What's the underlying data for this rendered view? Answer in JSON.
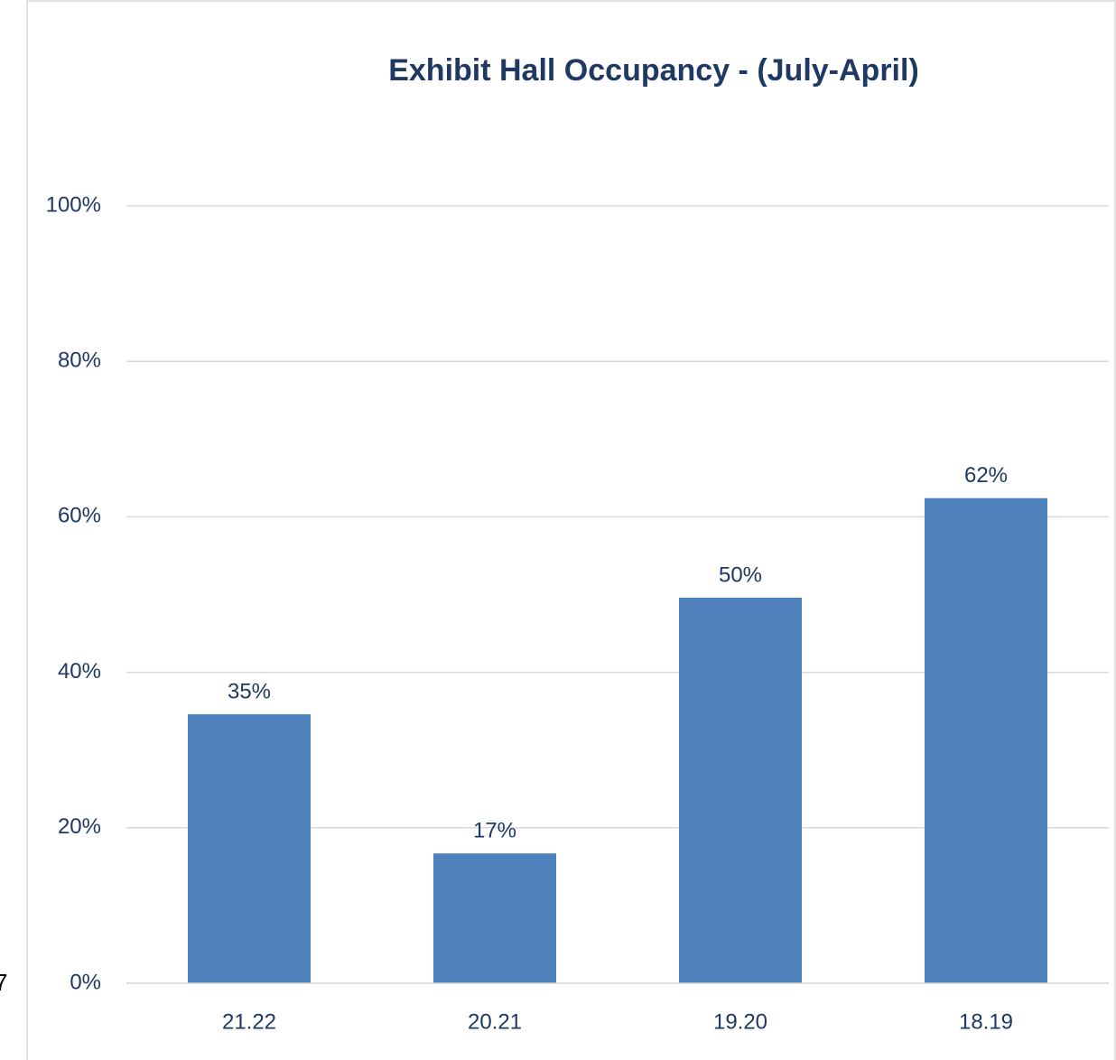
{
  "chart_data": {
    "type": "bar",
    "title": "Exhibit Hall Occupancy - (July-April)",
    "annotation": "7",
    "categories": [
      "21.22",
      "20.21",
      "19.20",
      "18.19"
    ],
    "values": [
      34.6,
      16.7,
      49.6,
      62.4
    ],
    "value_labels": [
      "35%",
      "17%",
      "50%",
      "62%"
    ],
    "color": "#4f81bd",
    "ylim": [
      0,
      100
    ],
    "yticks": [
      {
        "value": 0,
        "label": "0%"
      },
      {
        "value": 20,
        "label": "20%"
      },
      {
        "value": 40,
        "label": "40%"
      },
      {
        "value": 60,
        "label": "60%"
      },
      {
        "value": 80,
        "label": "80%"
      },
      {
        "value": 100,
        "label": "100%"
      }
    ],
    "grid": true
  }
}
